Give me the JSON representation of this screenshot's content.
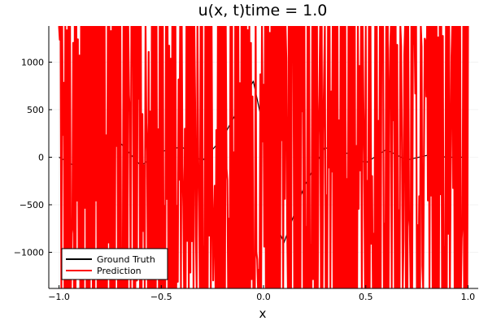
{
  "chart_data": {
    "type": "line",
    "title": "u(x, t)time = 1.0",
    "xlabel": "x",
    "ylabel": "",
    "xlim": [
      -1.05,
      1.05
    ],
    "ylim": [
      -1380,
      1380
    ],
    "x_ticks": [
      -1.0,
      -0.5,
      0.0,
      0.5,
      1.0
    ],
    "x_tick_labels": [
      "−1.0",
      "−0.5",
      "0.0",
      "0.5",
      "1.0"
    ],
    "y_ticks": [
      -1000,
      -500,
      0,
      500,
      1000
    ],
    "y_tick_labels": [
      "−1000",
      "−500",
      "0",
      "500",
      "1000"
    ],
    "grid": true,
    "legend_position": "bottom-left",
    "series": [
      {
        "name": "Ground Truth",
        "color": "#000000",
        "x": [
          -1.0,
          -0.9,
          -0.8,
          -0.7,
          -0.6,
          -0.5,
          -0.4,
          -0.3,
          -0.2,
          -0.1,
          -0.05,
          0.0,
          0.02,
          0.05,
          0.08,
          0.1,
          0.2,
          0.3,
          0.4,
          0.5,
          0.6,
          0.7,
          0.8,
          0.9,
          1.0
        ],
        "y": [
          0,
          -120,
          80,
          150,
          -90,
          60,
          110,
          -40,
          200,
          600,
          800,
          300,
          -200,
          -500,
          -800,
          -900,
          -300,
          100,
          50,
          -60,
          80,
          -30,
          20,
          0,
          0
        ]
      },
      {
        "name": "Prediction",
        "color": "#ff0000",
        "x_range": [
          -1.0,
          1.0
        ],
        "y_range": [
          -1380,
          1380
        ],
        "pattern": "dense oscillation filling the plot range"
      }
    ]
  }
}
